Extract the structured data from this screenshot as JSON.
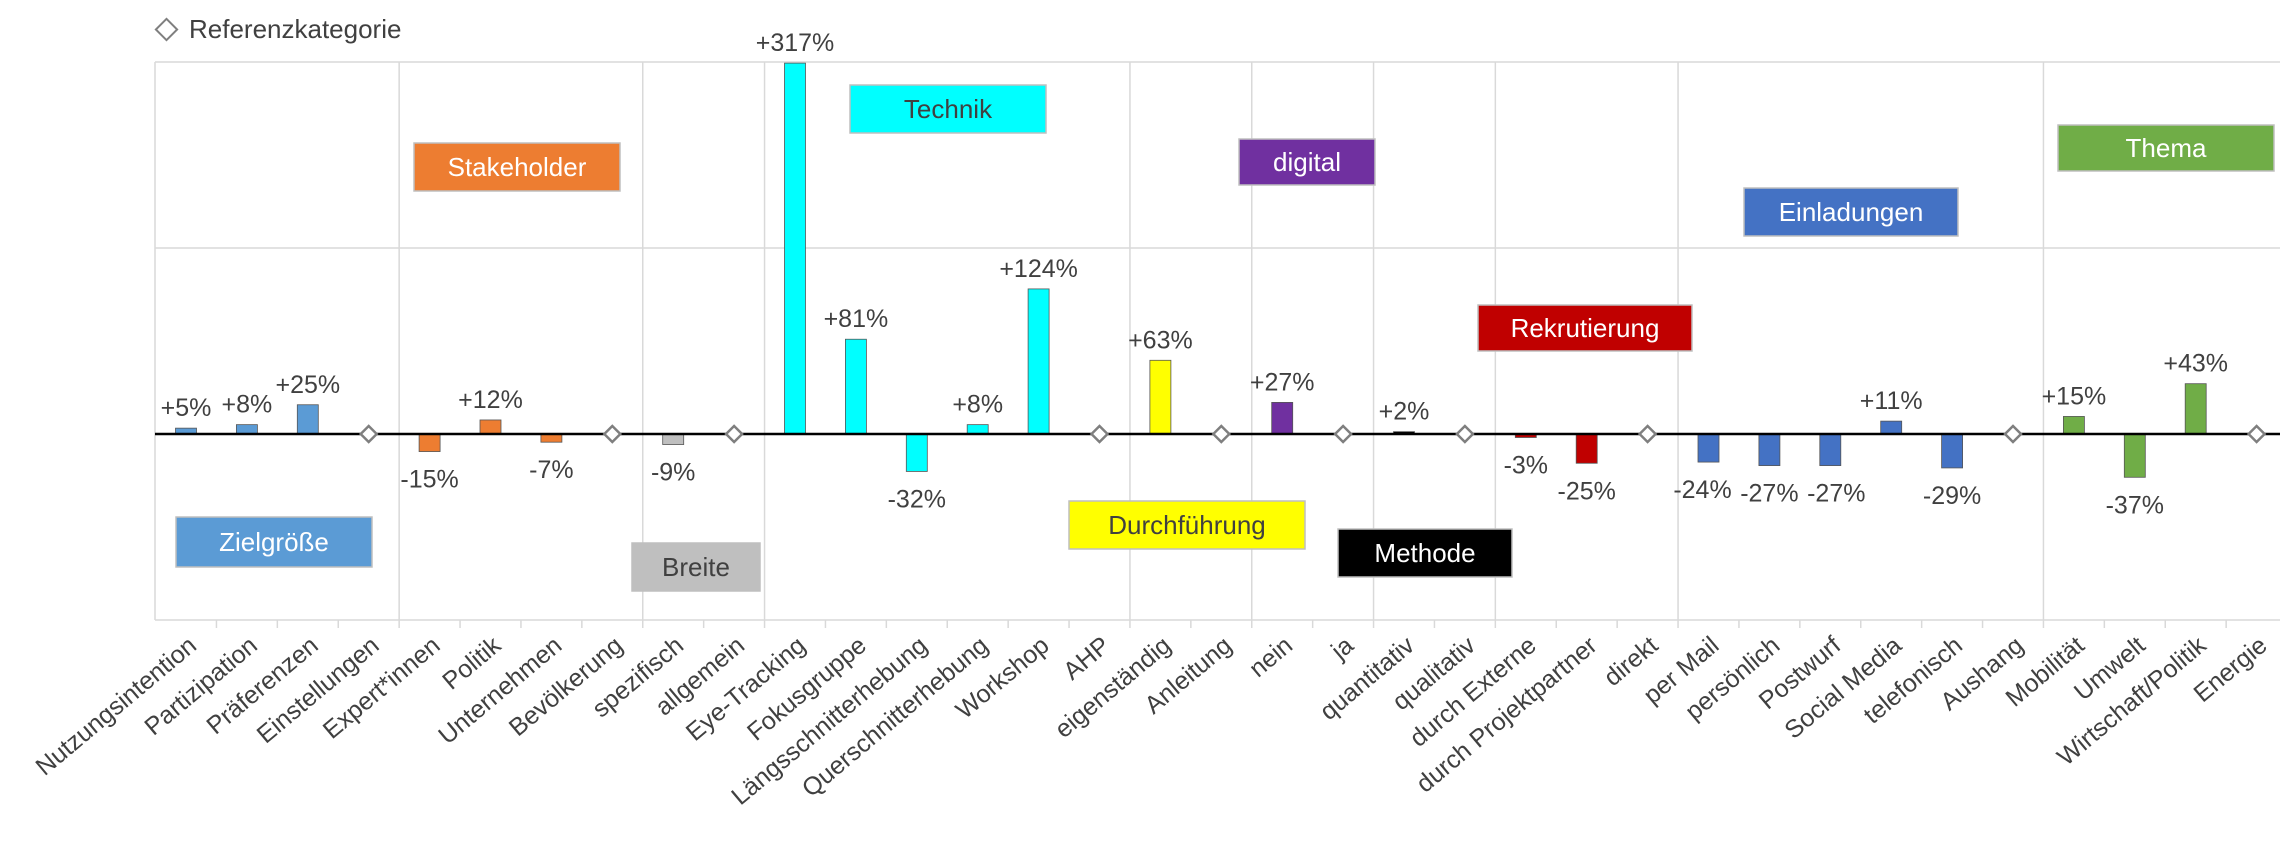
{
  "legend": {
    "reference_label": "Referenzkategorie"
  },
  "chart_data": {
    "type": "bar",
    "categories": [
      "Nutzungsintention",
      "Partizipation",
      "Präferenzen",
      "Einstellungen",
      "Expert*innen",
      "Politik",
      "Unternehmen",
      "Bevölkerung",
      "spezifisch",
      "allgemein",
      "Eye-Tracking",
      "Fokusgruppe",
      "Längsschnitterhebung",
      "Querschnitterhebung",
      "Workshop",
      "AHP",
      "eigenständig",
      "Anleitung",
      "nein",
      "ja",
      "quantitativ",
      "qualitativ",
      "durch Externe",
      "durch Projektpartner",
      "direkt",
      "per Mail",
      "persönlich",
      "Postwurf",
      "Social Media",
      "telefonisch",
      "Aushang",
      "Mobilität",
      "Umwelt",
      "Wirtschaft/Politik",
      "Energie"
    ],
    "values": [
      5,
      8,
      25,
      null,
      -15,
      12,
      -7,
      null,
      -9,
      null,
      317,
      81,
      -32,
      8,
      124,
      null,
      63,
      null,
      27,
      null,
      2,
      null,
      -3,
      -25,
      null,
      -24,
      -27,
      -27,
      11,
      -29,
      null,
      15,
      -37,
      43,
      null
    ],
    "labels": [
      "+5%",
      "+8%",
      "+25%",
      "",
      "-15%",
      "+12%",
      "-7%",
      "",
      "-9%",
      "",
      "+317%",
      "+81%",
      "-32%",
      "+8%",
      "+124%",
      "",
      "+63%",
      "",
      "+27%",
      "",
      "+2%",
      "",
      "-3%",
      "-25%",
      "",
      "-24%",
      "-27%",
      "-27%",
      "+11%",
      "-29%",
      "",
      "+15%",
      "-37%",
      "+43%",
      ""
    ],
    "reference_categories": [
      "Einstellungen",
      "Bevölkerung",
      "allgemein",
      "AHP",
      "Anleitung",
      "ja",
      "qualitativ",
      "direkt",
      "Aushang",
      "Energie"
    ],
    "groups": [
      {
        "name": "Zielgröße",
        "color": "#5b9bd5",
        "text_color": "#ffffff",
        "start": 0,
        "end": 3
      },
      {
        "name": "Stakeholder",
        "color": "#ed7d31",
        "text_color": "#ffffff",
        "start": 4,
        "end": 7
      },
      {
        "name": "Breite",
        "color": "#bfbfbf",
        "text_color": "#404040",
        "start": 8,
        "end": 9
      },
      {
        "name": "Technik",
        "color": "#00ffff",
        "text_color": "#404040",
        "start": 10,
        "end": 15
      },
      {
        "name": "Durchführung",
        "color": "#ffff00",
        "text_color": "#404040",
        "start": 16,
        "end": 17
      },
      {
        "name": "digital",
        "color": "#7030a0",
        "text_color": "#ffffff",
        "start": 18,
        "end": 19
      },
      {
        "name": "Methode",
        "color": "#000000",
        "text_color": "#ffffff",
        "start": 20,
        "end": 21
      },
      {
        "name": "Rekrutierung",
        "color": "#c00000",
        "text_color": "#ffffff",
        "start": 22,
        "end": 24
      },
      {
        "name": "Einladungen",
        "color": "#4472c4",
        "text_color": "#ffffff",
        "start": 25,
        "end": 30
      },
      {
        "name": "Thema",
        "color": "#70ad47",
        "text_color": "#ffffff",
        "start": 31,
        "end": 34
      }
    ],
    "grid": true,
    "legend_position": "top-left"
  }
}
